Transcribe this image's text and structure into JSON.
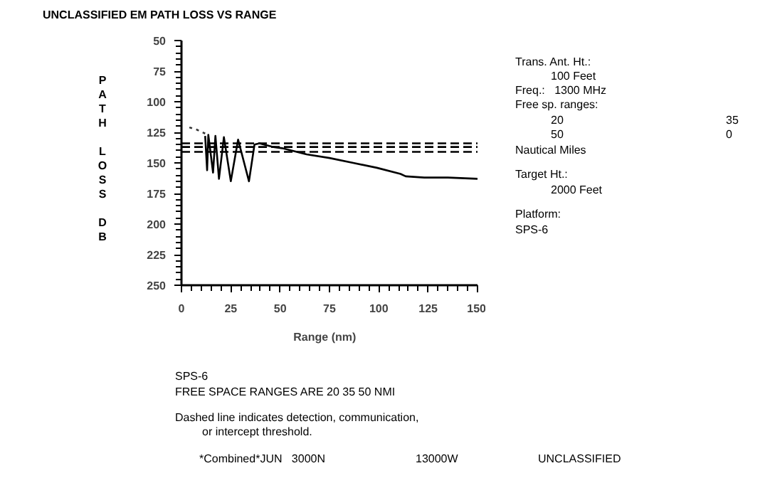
{
  "chart_data": {
    "type": "line",
    "title": "UNCLASSIFIED EM PATH LOSS VS RANGE",
    "xlabel": "Range    (nm)",
    "ylabel": "PATH LOSS DB",
    "xlim": [
      0,
      150
    ],
    "xticks": [
      0,
      25,
      50,
      75,
      100,
      125,
      150
    ],
    "ylim": [
      250,
      50
    ],
    "yticks": [
      50,
      75,
      100,
      125,
      150,
      175,
      200,
      225,
      250
    ],
    "grid": false,
    "series": [
      {
        "color": "#333333",
        "line_style": "dotted",
        "x": [
          4,
          8,
          12
        ],
        "values": [
          121,
          123,
          126
        ]
      },
      {
        "color": "#000000",
        "line_style": "solid",
        "x": [
          12,
          13,
          13.6,
          16,
          17.2,
          19,
          21.5,
          25,
          28.7,
          34.2,
          37,
          39.5,
          46.6,
          51,
          63.4,
          75,
          87,
          99,
          111,
          113.6,
          123,
          135,
          150
        ],
        "values": [
          128,
          156,
          127,
          158,
          128,
          163,
          129,
          165,
          131,
          165,
          135,
          134,
          137,
          138,
          143,
          146,
          150,
          154,
          159,
          161,
          162,
          162,
          163
        ]
      }
    ],
    "ref_lines": [
      {
        "axis": "y",
        "value": 134,
        "line_style": "dashed",
        "color": "#000000"
      },
      {
        "axis": "y",
        "value": 137,
        "line_style": "dashed",
        "color": "#000000"
      },
      {
        "axis": "y",
        "value": 141,
        "line_style": "dashed",
        "color": "#000000"
      }
    ],
    "annotations": [
      "Trans. Ant. Ht.:",
      "100 Feet",
      "Freq.:   1300 MHz",
      "Free sp. ranges:",
      "20",
      "35",
      "50",
      "0",
      "Nautical Miles",
      "Target Ht.:",
      "2000 Feet",
      "Platform:",
      "SPS-6",
      "SPS-6",
      "FREE SPACE RANGES ARE 20 35 50 NMI",
      "Dashed line indicates detection, communication,",
      "or intercept threshold.",
      "*Combined*JUN   3000N",
      "13000W",
      "UNCLASSIFIED"
    ]
  }
}
